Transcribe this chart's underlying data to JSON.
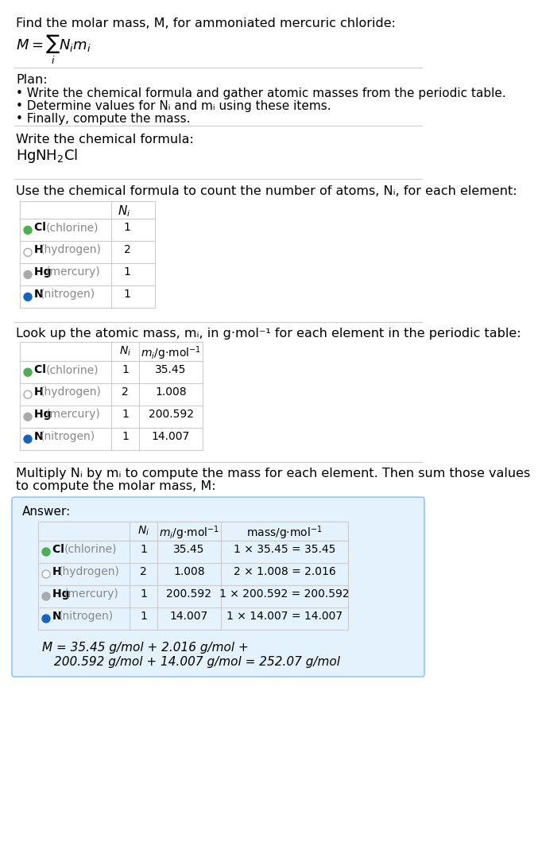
{
  "title_line": "Find the molar mass, M, for ammoniated mercuric chloride:",
  "formula_label": "M = ∑ Nᵢmᵢ",
  "formula_sublabel": "i",
  "bg_color": "#ffffff",
  "text_color": "#000000",
  "gray_text": "#888888",
  "plan_header": "Plan:",
  "plan_bullets": [
    "• Write the chemical formula and gather atomic masses from the periodic table.",
    "• Determine values for Nᵢ and mᵢ using these items.",
    "• Finally, compute the mass."
  ],
  "formula_section_header": "Write the chemical formula:",
  "chemical_formula": "HgNH₂Cl",
  "count_section_header": "Use the chemical formula to count the number of atoms, Nᵢ, for each element:",
  "lookup_section_header": "Look up the atomic mass, mᵢ, in g·mol⁻¹ for each element in the periodic table:",
  "multiply_section_header": "Multiply Nᵢ by mᵢ to compute the mass for each element. Then sum those values\nto compute the molar mass, M:",
  "answer_label": "Answer:",
  "elements": [
    {
      "symbol": "Cl",
      "name": "chlorine",
      "color": "#4caf50",
      "filled": true,
      "Ni": 1,
      "mi": "35.45"
    },
    {
      "symbol": "H",
      "name": "hydrogen",
      "color": "#ffffff",
      "filled": false,
      "stroke": "#aaaaaa",
      "Ni": 2,
      "mi": "1.008"
    },
    {
      "symbol": "Hg",
      "name": "mercury",
      "color": "#aaaaaa",
      "filled": true,
      "Ni": 1,
      "mi": "200.592"
    },
    {
      "symbol": "N",
      "name": "nitrogen",
      "color": "#1565c0",
      "filled": true,
      "Ni": 1,
      "mi": "14.007"
    }
  ],
  "mass_values": [
    "35.45",
    "2.016",
    "200.592",
    "14.007"
  ],
  "mass_exprs": [
    "1 × 35.45 = 35.45",
    "2 × 1.008 = 2.016",
    "1 × 200.592 = 200.592",
    "1 × 14.007 = 14.007"
  ],
  "final_eq_line1": "M = 35.45 g/mol + 2.016 g/mol +",
  "final_eq_line2": "200.592 g/mol + 14.007 g/mol = 252.07 g/mol",
  "answer_bg": "#e3f2fd",
  "answer_border": "#90caf9",
  "table_border": "#cccccc"
}
